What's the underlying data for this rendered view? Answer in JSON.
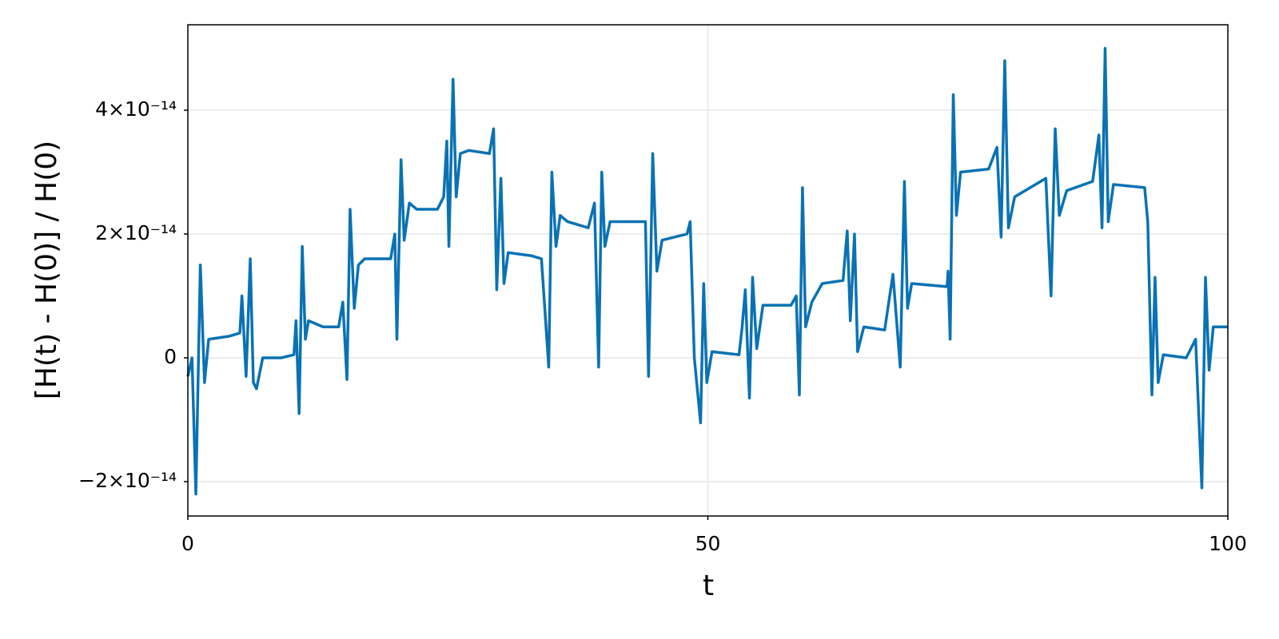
{
  "chart_data": {
    "type": "line",
    "xlabel": "t",
    "ylabel": "[H(t) - H(0)] / H(0)",
    "x": [
      0,
      0.4,
      0.77,
      1.2,
      1.6,
      2.0,
      4,
      5,
      5.2,
      5.6,
      6.0,
      6.3,
      6.6,
      7.2,
      9,
      10.2,
      10.4,
      10.7,
      11.0,
      11.3,
      11.6,
      13,
      14.5,
      14.9,
      15.3,
      15.6,
      16.0,
      16.4,
      17,
      19.5,
      19.9,
      20.1,
      20.5,
      20.8,
      21.3,
      22,
      24,
      24.6,
      24.9,
      25.1,
      25.5,
      25.8,
      26.2,
      27,
      29,
      29.4,
      29.7,
      30.1,
      30.4,
      30.8,
      33,
      34,
      34.7,
      35.0,
      35.4,
      35.8,
      36.5,
      38.5,
      39.1,
      39.5,
      39.8,
      40.1,
      40.6,
      44,
      44.3,
      44.7,
      45.1,
      45.6,
      48,
      48.3,
      48.7,
      49.3,
      49.6,
      49.9,
      50.4,
      53,
      53.3,
      53.6,
      54.0,
      54.3,
      54.7,
      55.3,
      58,
      58.5,
      58.8,
      59.1,
      59.4,
      60,
      61,
      63,
      63.4,
      63.7,
      64.1,
      64.4,
      65,
      67,
      67.8,
      68.5,
      68.9,
      69.2,
      69.6,
      73,
      73.1,
      73.3,
      73.6,
      73.9,
      74.3,
      77,
      77.8,
      78.2,
      78.55,
      78.9,
      79.5,
      82.5,
      83.0,
      83.4,
      83.8,
      84.5,
      87,
      87.6,
      87.9,
      88.2,
      88.5,
      89,
      92,
      92.3,
      92.7,
      93.0,
      93.3,
      93.8,
      96,
      96.9,
      97.5,
      97.85,
      98.2,
      98.6,
      100
    ],
    "values": [
      -3e-15,
      0.0,
      -2.2e-14,
      1.5e-14,
      -4e-15,
      3e-15,
      3.5e-15,
      4e-15,
      1e-14,
      -3e-15,
      1.6e-14,
      -4e-15,
      -5e-15,
      0.0,
      0.0,
      5e-16,
      6e-15,
      -9e-15,
      1.8e-14,
      3e-15,
      6e-15,
      5e-15,
      5e-15,
      9e-15,
      -3.5e-15,
      2.4e-14,
      8e-15,
      1.5e-14,
      1.6e-14,
      1.6e-14,
      2e-14,
      3e-15,
      3.2e-14,
      1.9e-14,
      2.5e-14,
      2.4e-14,
      2.4e-14,
      2.6e-14,
      3.5e-14,
      1.8e-14,
      4.5e-14,
      2.6e-14,
      3.3e-14,
      3.35e-14,
      3.3e-14,
      3.7e-14,
      1.1e-14,
      2.9e-14,
      1.2e-14,
      1.7e-14,
      1.65e-14,
      1.6e-14,
      -1.5e-15,
      3e-14,
      1.8e-14,
      2.3e-14,
      2.2e-14,
      2.1e-14,
      2.5e-14,
      -1.5e-15,
      3e-14,
      1.8e-14,
      2.2e-14,
      2.2e-14,
      -3e-15,
      3.3e-14,
      1.4e-14,
      1.9e-14,
      2e-14,
      2.2e-14,
      0.0,
      -1.05e-14,
      1.2e-14,
      -4e-15,
      1e-15,
      5e-16,
      5e-15,
      1.1e-14,
      -6.5e-15,
      1.3e-14,
      1.5e-15,
      8.5e-15,
      8.5e-15,
      1e-14,
      -6e-15,
      2.75e-14,
      5e-15,
      9e-15,
      1.2e-14,
      1.25e-14,
      2.05e-14,
      6e-15,
      2e-14,
      1e-15,
      5e-15,
      4.5e-15,
      1.35e-14,
      -1.5e-15,
      2.85e-14,
      8e-15,
      1.2e-14,
      1.15e-14,
      1.4e-14,
      3e-15,
      4.25e-14,
      2.3e-14,
      3e-14,
      3.05e-14,
      3.4e-14,
      1.95e-14,
      4.8e-14,
      2.1e-14,
      2.6e-14,
      2.9e-14,
      1e-14,
      3.7e-14,
      2.3e-14,
      2.7e-14,
      2.85e-14,
      3.6e-14,
      2.1e-14,
      5e-14,
      2.2e-14,
      2.8e-14,
      2.75e-14,
      2.2e-14,
      -6e-15,
      1.3e-14,
      -4e-15,
      5e-16,
      0.0,
      3e-15,
      -2.1e-14,
      1.3e-14,
      -2e-15,
      5e-15,
      5e-15
    ],
    "color": "#0a72b4",
    "xlim": [
      0,
      100
    ],
    "xticks": [
      0,
      50,
      100
    ],
    "ylim": [
      -2.555e-14,
      5.38e-14
    ],
    "yticks": [
      {
        "value": -2e-14,
        "label": "−2×10⁻¹⁴"
      },
      0,
      {
        "value": 2e-14,
        "label": "2×10⁻¹⁴"
      },
      {
        "value": 4e-14,
        "label": "4×10⁻¹⁴"
      }
    ],
    "grid": true
  }
}
